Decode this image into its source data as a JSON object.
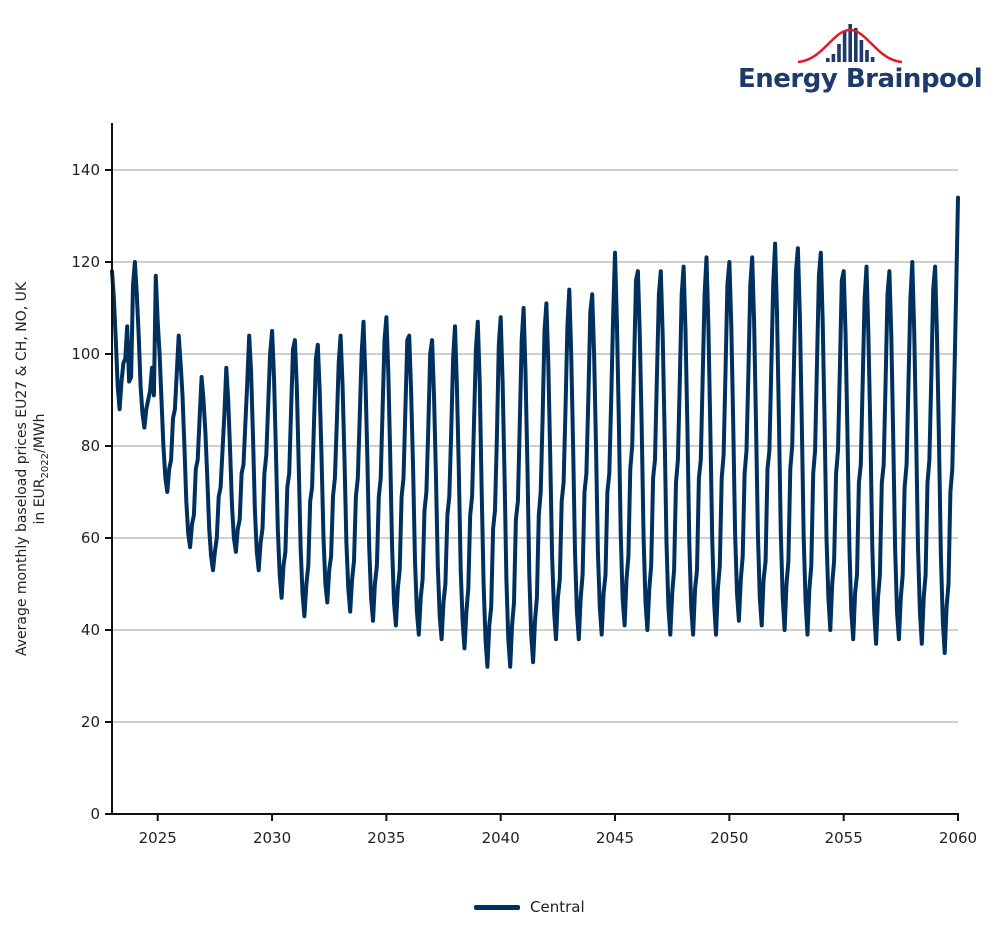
{
  "logo": {
    "text": "Energy Brainpool",
    "colors": {
      "text": "#1d3a6b",
      "curve": "#e2192c",
      "bars": "#1d3a6b"
    }
  },
  "chart_data": {
    "type": "line",
    "title": "",
    "xlabel": "",
    "ylabel": "Average monthly baseload prices EU27 & CH, NO, UK",
    "ylabel_line2_prefix": "in EUR",
    "ylabel_line2_sub": "2022",
    "ylabel_line2_suffix": "/MWh",
    "xlim": [
      2023,
      2060
    ],
    "ylim": [
      0,
      150
    ],
    "x_ticks": [
      2025,
      2030,
      2035,
      2040,
      2045,
      2050,
      2055,
      2060
    ],
    "y_ticks": [
      0,
      20,
      40,
      60,
      80,
      100,
      120,
      140
    ],
    "grid": "horizontal",
    "legend": {
      "position": "bottom-center"
    },
    "line_color": "#00305e",
    "series": [
      {
        "name": "Central",
        "start": "2023-01",
        "frequency": "monthly",
        "values_by_year": {
          "2023": [
            118,
            112,
            103,
            93,
            88,
            94,
            98,
            99,
            106,
            94,
            95,
            115
          ],
          "2024": [
            120,
            113,
            104,
            93,
            87,
            84,
            88,
            90,
            92,
            97,
            91,
            117
          ],
          "2025": [
            107,
            100,
            90,
            80,
            73,
            70,
            75,
            77,
            86,
            88,
            96,
            104
          ],
          "2026": [
            98,
            91,
            80,
            68,
            61,
            58,
            63,
            65,
            75,
            77,
            86,
            95
          ],
          "2027": [
            90,
            83,
            73,
            62,
            56,
            53,
            57,
            60,
            69,
            71,
            79,
            87
          ],
          "2028": [
            97,
            90,
            79,
            67,
            60,
            57,
            62,
            64,
            74,
            76,
            85,
            94
          ],
          "2029": [
            104,
            96,
            82,
            66,
            57,
            53,
            59,
            62,
            74,
            78,
            89,
            100
          ],
          "2030": [
            105,
            95,
            79,
            62,
            52,
            47,
            54,
            57,
            71,
            74,
            88,
            101
          ],
          "2031": [
            103,
            93,
            76,
            58,
            48,
            43,
            50,
            54,
            68,
            71,
            85,
            99
          ],
          "2032": [
            102,
            92,
            77,
            60,
            50,
            46,
            53,
            56,
            69,
            73,
            85,
            98
          ],
          "2033": [
            104,
            93,
            77,
            59,
            49,
            44,
            51,
            55,
            69,
            73,
            86,
            100
          ],
          "2034": [
            107,
            95,
            78,
            58,
            47,
            42,
            50,
            54,
            69,
            73,
            88,
            103
          ],
          "2035": [
            108,
            96,
            78,
            58,
            46,
            41,
            49,
            53,
            69,
            73,
            88,
            103
          ],
          "2036": [
            104,
            92,
            75,
            55,
            44,
            39,
            47,
            51,
            66,
            70,
            84,
            100
          ],
          "2037": [
            103,
            91,
            74,
            54,
            43,
            38,
            46,
            50,
            65,
            69,
            83,
            99
          ],
          "2038": [
            106,
            93,
            75,
            53,
            42,
            36,
            44,
            49,
            65,
            69,
            85,
            101
          ],
          "2039": [
            107,
            94,
            71,
            50,
            38,
            32,
            41,
            45,
            62,
            66,
            82,
            102
          ],
          "2040": [
            108,
            94,
            74,
            51,
            38,
            32,
            41,
            46,
            64,
            68,
            85,
            103
          ],
          "2041": [
            110,
            96,
            76,
            52,
            39,
            33,
            42,
            47,
            65,
            70,
            86,
            105
          ],
          "2042": [
            111,
            98,
            78,
            56,
            44,
            38,
            47,
            51,
            68,
            72,
            88,
            106
          ],
          "2043": [
            114,
            100,
            80,
            57,
            44,
            38,
            47,
            52,
            70,
            74,
            91,
            109
          ],
          "2044": [
            113,
            100,
            80,
            57,
            45,
            39,
            48,
            52,
            70,
            74,
            90,
            108
          ],
          "2045": [
            122,
            107,
            86,
            61,
            47,
            41,
            51,
            56,
            75,
            80,
            98,
            116
          ],
          "2046": [
            118,
            104,
            84,
            60,
            46,
            40,
            49,
            54,
            73,
            77,
            95,
            113
          ],
          "2047": [
            118,
            104,
            83,
            59,
            45,
            39,
            48,
            53,
            72,
            77,
            94,
            113
          ],
          "2048": [
            119,
            105,
            84,
            59,
            45,
            39,
            49,
            53,
            73,
            77,
            95,
            113
          ],
          "2049": [
            121,
            106,
            84,
            60,
            46,
            39,
            49,
            54,
            73,
            78,
            96,
            115
          ],
          "2050": [
            120,
            106,
            85,
            61,
            48,
            42,
            51,
            56,
            74,
            79,
            96,
            115
          ],
          "2051": [
            121,
            107,
            85,
            61,
            47,
            41,
            51,
            55,
            75,
            79,
            97,
            115
          ],
          "2052": [
            124,
            109,
            86,
            61,
            47,
            40,
            50,
            55,
            75,
            80,
            99,
            118
          ],
          "2053": [
            123,
            108,
            85,
            60,
            46,
            39,
            49,
            54,
            74,
            79,
            98,
            117
          ],
          "2054": [
            122,
            107,
            85,
            60,
            47,
            40,
            50,
            55,
            74,
            79,
            97,
            116
          ],
          "2055": [
            118,
            104,
            82,
            58,
            44,
            38,
            48,
            52,
            72,
            76,
            94,
            112
          ],
          "2056": [
            119,
            104,
            83,
            58,
            44,
            37,
            47,
            52,
            72,
            76,
            94,
            113
          ],
          "2057": [
            118,
            104,
            82,
            58,
            44,
            38,
            47,
            52,
            71,
            76,
            94,
            112
          ],
          "2058": [
            120,
            105,
            83,
            58,
            44,
            37,
            47,
            52,
            72,
            77,
            95,
            114
          ],
          "2059": [
            119,
            104,
            82,
            56,
            42,
            35,
            45,
            50,
            70,
            75,
            93,
            113
          ],
          "2060": [
            134
          ]
        }
      }
    ]
  }
}
